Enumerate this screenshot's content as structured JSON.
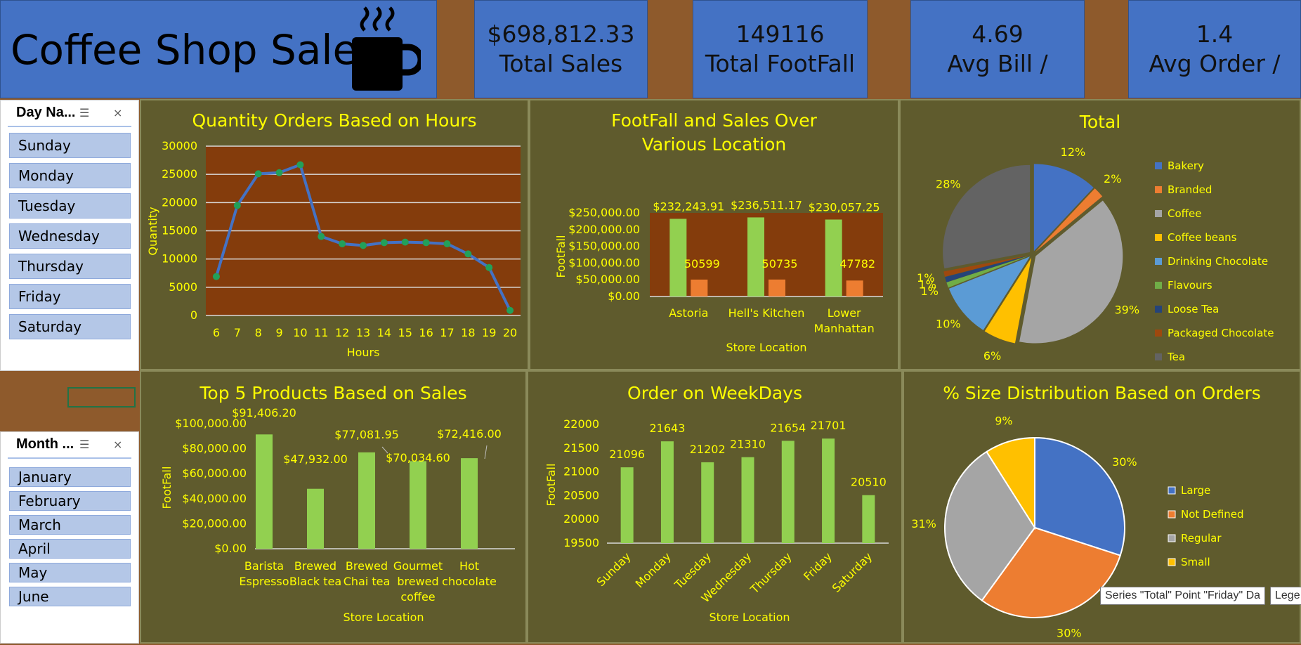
{
  "header": {
    "title": "Coffee Shop Sales",
    "icon": "coffee-cup-icon"
  },
  "kpis": [
    {
      "value": "$698,812.33",
      "label": "Total Sales"
    },
    {
      "value": "149116",
      "label": "Total FootFall"
    },
    {
      "value": "4.69",
      "label": "Avg Bill /"
    },
    {
      "value": "1.4",
      "label": "Avg Order /"
    }
  ],
  "day_slicer": {
    "title": "Day Na...",
    "items": [
      "Sunday",
      "Monday",
      "Tuesday",
      "Wednesday",
      "Thursday",
      "Friday",
      "Saturday"
    ]
  },
  "month_slicer": {
    "title": "Month ...",
    "items": [
      "January",
      "February",
      "March",
      "April",
      "May",
      "June"
    ]
  },
  "tooltip": {
    "text": "Series \"Total\" Point \"Friday\" Da",
    "legend_stub": "Lege"
  },
  "colors": {
    "accent": "#ffff00",
    "panel": "#5f5b2d",
    "plot_bg": "#843c0c",
    "bar_green": "#92d050",
    "bar_orange": "#ed7d31",
    "line_blue": "#4472c4",
    "marker": "#22a05a"
  },
  "chart_data": [
    {
      "type": "line",
      "title": "Quantity Orders Based on Hours",
      "xlabel": "Hours",
      "ylabel": "Quantity",
      "x": [
        6,
        7,
        8,
        9,
        10,
        11,
        12,
        13,
        14,
        15,
        16,
        17,
        18,
        19,
        20
      ],
      "values": [
        6900,
        19500,
        25100,
        25300,
        26700,
        14000,
        12700,
        12400,
        12900,
        13000,
        12900,
        12700,
        10900,
        8500,
        900
      ],
      "ylim": [
        0,
        30000
      ],
      "yticks": [
        "0",
        "5000",
        "10000",
        "15000",
        "20000",
        "25000",
        "30000"
      ],
      "grid": true
    },
    {
      "type": "bar",
      "title": "FootFall and Sales Over Various Location",
      "xlabel": "Store Location",
      "ylabel": "FootFall",
      "categories": [
        "Astoria",
        "Hell's Kitchen",
        "Lower Manhattan"
      ],
      "series": [
        {
          "values": [
            232243.91,
            236511.17,
            230057.25
          ],
          "labels": [
            "$232,243.91",
            "$236,511.17",
            "$230,057.25"
          ]
        },
        {
          "values": [
            50599,
            50735,
            47782
          ],
          "labels": [
            "50599",
            "50735",
            "47782"
          ]
        }
      ],
      "ylim": [
        0,
        250000
      ],
      "yticks": [
        "$0.00",
        "$50,000.00",
        "$100,000.00",
        "$150,000.00",
        "$200,000.00",
        "$250,000.00"
      ]
    },
    {
      "type": "pie",
      "title": "Total",
      "slices": [
        {
          "name": "Bakery",
          "pct": 12,
          "label": "12%",
          "color": "#4472c4"
        },
        {
          "name": "Branded",
          "pct": 2,
          "label": "2%",
          "color": "#ed7d31"
        },
        {
          "name": "Coffee",
          "pct": 39,
          "label": "39%",
          "color": "#a5a5a5"
        },
        {
          "name": "Coffee beans",
          "pct": 6,
          "label": "6%",
          "color": "#ffc000"
        },
        {
          "name": "Drinking Chocolate",
          "pct": 10,
          "label": "10%",
          "color": "#5b9bd5"
        },
        {
          "name": "Flavours",
          "pct": 1,
          "label": "1%",
          "color": "#70ad47"
        },
        {
          "name": "Loose Tea",
          "pct": 1,
          "label": "1%",
          "color": "#264478"
        },
        {
          "name": "Packaged Chocolate",
          "pct": 1,
          "label": "1%",
          "color": "#9e480e"
        },
        {
          "name": "Tea",
          "pct": 28,
          "label": "28%",
          "color": "#636363"
        }
      ],
      "legend": "right"
    },
    {
      "type": "bar",
      "title": "Top 5 Products Based on Sales",
      "xlabel": "Store Location",
      "ylabel": "FootFall",
      "categories": [
        [
          "Barista",
          "Espresso"
        ],
        [
          "Brewed",
          "Black tea"
        ],
        [
          "Brewed",
          "Chai tea"
        ],
        [
          "Gourmet",
          "brewed",
          "coffee"
        ],
        [
          "Hot",
          "chocolate"
        ]
      ],
      "values": [
        91406.2,
        47932.0,
        77081.95,
        70034.6,
        72416.0
      ],
      "labels": [
        "$91,406.20",
        "$47,932.00",
        "$77,081.95",
        "$70,034.60",
        "$72,416.00"
      ],
      "ylim": [
        0,
        100000
      ],
      "yticks": [
        "$0.00",
        "$20,000.00",
        "$40,000.00",
        "$60,000.00",
        "$80,000.00",
        "$100,000.00"
      ]
    },
    {
      "type": "bar",
      "title": "Order on WeekDays",
      "xlabel": "Store Location",
      "ylabel": "FootFall",
      "categories": [
        "Sunday",
        "Monday",
        "Tuesday",
        "Wednesday",
        "Thursday",
        "Friday",
        "Saturday"
      ],
      "values": [
        21096,
        21643,
        21202,
        21310,
        21654,
        21701,
        20510
      ],
      "labels": [
        "21096",
        "21643",
        "21202",
        "21310",
        "21654",
        "21701",
        "20510"
      ],
      "ylim": [
        19500,
        22000
      ],
      "yticks": [
        "19500",
        "20000",
        "20500",
        "21000",
        "21500",
        "22000"
      ]
    },
    {
      "type": "pie",
      "title": "% Size  Distribution Based on Orders",
      "slices": [
        {
          "name": "Large",
          "pct": 30,
          "label": "30%",
          "color": "#4472c4"
        },
        {
          "name": "Not Defined",
          "pct": 30,
          "label": "30%",
          "color": "#ed7d31"
        },
        {
          "name": "Regular",
          "pct": 31,
          "label": "31%",
          "color": "#a5a5a5"
        },
        {
          "name": "Small",
          "pct": 9,
          "label": "9%",
          "color": "#ffc000"
        }
      ],
      "legend": "right"
    }
  ]
}
